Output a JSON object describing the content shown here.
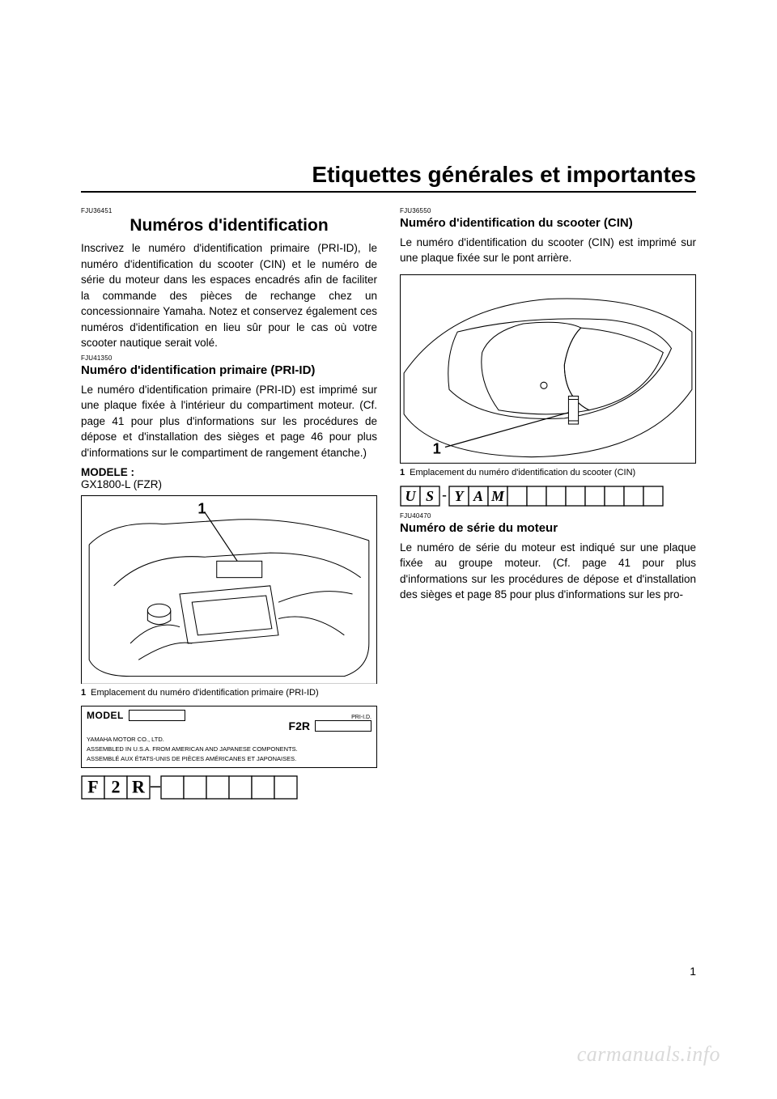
{
  "page": {
    "title": "Etiquettes générales et importantes",
    "number": "1",
    "watermark": "carmanuals.info"
  },
  "left": {
    "ref1": "FJU36451",
    "h1": "Numéros d'identification",
    "p1": "Inscrivez le numéro d'identification primaire (PRI-ID), le numéro d'identification du scooter (CIN) et le numéro de série du moteur dans les espaces encadrés afin de faciliter la commande des pièces de rechange chez un concessionnaire Yamaha. Notez et conservez également ces numéros d'identification en lieu sûr pour le cas où votre scooter nautique serait volé.",
    "ref2": "FJU41350",
    "h2": "Numéro d'identification primaire (PRI-ID)",
    "p2": "Le numéro d'identification primaire (PRI-ID) est imprimé sur une plaque fixée à l'intérieur du compartiment moteur. (Cf. page 41 pour plus d'informations sur les procédures de dépose et d'installation des sièges et page 46 pour plus d'informations sur le compartiment de rangement étanche.)",
    "model_label": "MODELE :",
    "model_value": "GX1800-L (FZR)",
    "fig1": {
      "callout": "1",
      "caption_num": "1",
      "caption_text": "Emplacement du numéro d'identification primaire (PRI-ID)",
      "stroke": "#000000",
      "bg": "#ffffff"
    },
    "plate": {
      "model_word": "MODEL",
      "priid_label": "PRI-I.D.",
      "f2r": "F2R",
      "line1": "YAMAHA MOTOR CO., LTD.",
      "line2": "ASSEMBLED IN U.S.A. FROM AMERICAN AND JAPANESE COMPONENTS.",
      "line3": "ASSEMBLÉ AUX ÉTATS-UNIS DE PIÈCES AMÉRICANES ET JAPONAISES."
    },
    "codebar": {
      "chars": [
        "F",
        "2",
        "R"
      ],
      "dash": "–",
      "blank_count": 6,
      "font_size": 22,
      "box_size": 28,
      "stroke": "#000000"
    }
  },
  "right": {
    "ref1": "FJU36550",
    "h2a": "Numéro d'identification du scooter (CIN)",
    "p1": "Le numéro d'identification du scooter (CIN) est imprimé sur une plaque fixée sur le pont arrière.",
    "fig1": {
      "callout": "1",
      "caption_num": "1",
      "caption_text": "Emplacement du numéro d'identification du scooter (CIN)",
      "stroke": "#000000",
      "bg": "#ffffff"
    },
    "codebar": {
      "chars": [
        "U",
        "S",
        "-",
        "Y",
        "A",
        "M"
      ],
      "blank_count": 8,
      "font_size": 18,
      "box_size": 24,
      "stroke": "#000000",
      "italic_indices": [
        0,
        1,
        3,
        4,
        5
      ]
    },
    "ref2": "FJU40470",
    "h2b": "Numéro de série du moteur",
    "p2": "Le numéro de série du moteur est indiqué sur une plaque fixée au groupe moteur. (Cf. page 41 pour plus d'informations sur les procédures de dépose et d'installation des sièges et page 85 pour plus d'informations sur les pro-"
  }
}
